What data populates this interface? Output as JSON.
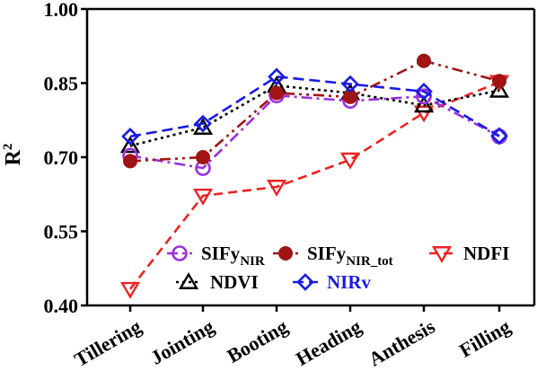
{
  "chart_data": {
    "type": "line",
    "title": "",
    "xlabel": "",
    "ylabel": "R",
    "ylabel_superscript": "2",
    "categories": [
      "Tillering",
      "Jointing",
      "Booting",
      "Heading",
      "Anthesis",
      "Filling"
    ],
    "ylim": [
      0.4,
      1.0
    ],
    "yticks": [
      "0.40",
      "0.55",
      "0.70",
      "0.85",
      "1.00"
    ],
    "grid": false,
    "legend_position": "bottom-right",
    "series": [
      {
        "name": "SIFy",
        "sub": "NIR",
        "color": "#9b30d9",
        "text_color": "#000000",
        "marker": "circle-open",
        "dash": "12 5 3 5",
        "values": [
          0.703,
          0.678,
          0.825,
          0.814,
          0.823,
          0.742
        ]
      },
      {
        "name": "SIFy",
        "sub": "NIR_tot",
        "color": "#a01414",
        "text_color": "#000000",
        "marker": "circle-filled",
        "dash": "12 5 3 5 3 5",
        "values": [
          0.692,
          0.7,
          0.83,
          0.822,
          0.895,
          0.854
        ]
      },
      {
        "name": "NDFI",
        "sub": "",
        "color": "#ee2222",
        "text_color": "#000000",
        "marker": "triangle-down",
        "dash": "10 6",
        "values": [
          0.433,
          0.622,
          0.64,
          0.695,
          0.79,
          0.852
        ]
      },
      {
        "name": "NDVI",
        "sub": "",
        "color": "#000000",
        "text_color": "#000000",
        "marker": "triangle-up",
        "dash": "3 4",
        "values": [
          0.723,
          0.76,
          0.845,
          0.83,
          0.805,
          0.835
        ]
      },
      {
        "name": "NIRv",
        "sub": "",
        "color": "#1a1ae6",
        "text_color": "#1a1ae6",
        "marker": "diamond",
        "dash": "12 6",
        "values": [
          0.742,
          0.768,
          0.863,
          0.848,
          0.833,
          0.743
        ]
      }
    ]
  }
}
